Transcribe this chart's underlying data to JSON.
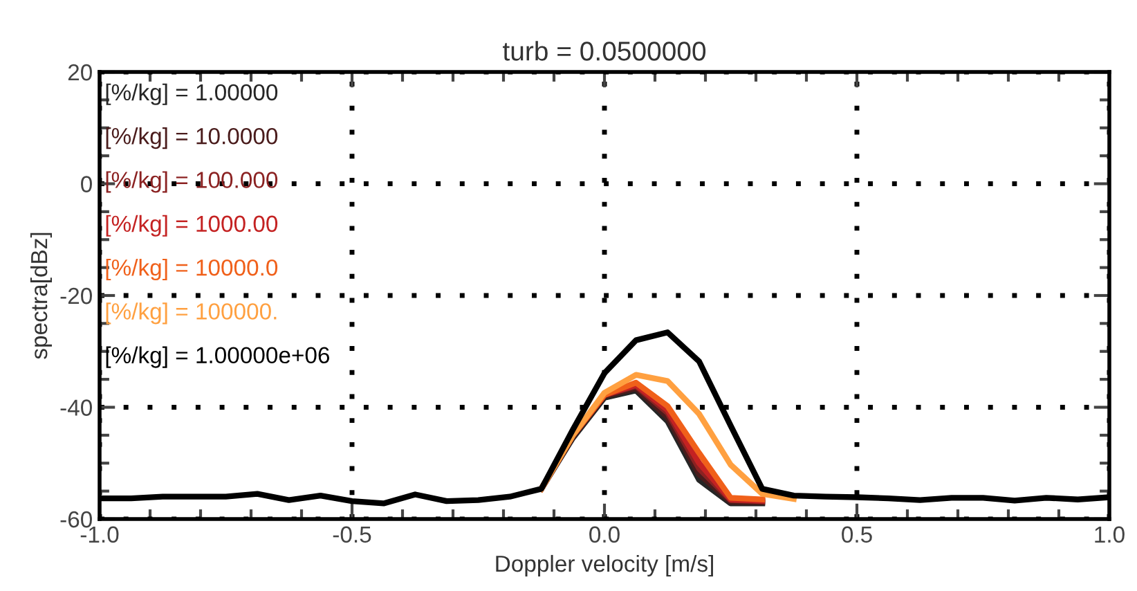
{
  "chart_data": {
    "type": "line",
    "title": "turb = 0.0500000",
    "xlabel": "Doppler velocity [m/s]",
    "ylabel": "spectra[dBz]",
    "x": [
      -1,
      -0.9375,
      -0.875,
      -0.8125,
      -0.75,
      -0.6875,
      -0.625,
      -0.5625,
      -0.5,
      -0.4375,
      -0.375,
      -0.3125,
      -0.25,
      -0.1875,
      -0.125,
      -0.0625,
      0,
      0.0625,
      0.125,
      0.1875,
      0.25,
      0.3125,
      0.375,
      0.4375,
      0.5,
      0.5625,
      0.625,
      0.6875,
      0.75,
      0.8125,
      0.875,
      0.9375,
      1
    ],
    "series": [
      {
        "name": "[%/kg] = 1.00000",
        "color": "#262626",
        "values": [
          null,
          null,
          null,
          null,
          null,
          null,
          null,
          null,
          null,
          null,
          null,
          null,
          null,
          null,
          -54.6,
          -45.5,
          -38.3,
          -37,
          -42.5,
          -53,
          -57.2,
          -57.2,
          null,
          null,
          null,
          null,
          null,
          null,
          null,
          null,
          null,
          null,
          null
        ]
      },
      {
        "name": "[%/kg] = 10.0000",
        "color": "#4a1c1c",
        "values": [
          null,
          null,
          null,
          null,
          null,
          null,
          null,
          null,
          null,
          null,
          null,
          null,
          null,
          null,
          -54.6,
          -45.2,
          -38,
          -36.6,
          -41.8,
          -52,
          -56.9,
          -57,
          null,
          null,
          null,
          null,
          null,
          null,
          null,
          null,
          null,
          null,
          null
        ]
      },
      {
        "name": "[%/kg] = 100.000",
        "color": "#8b2222",
        "values": [
          null,
          null,
          null,
          null,
          null,
          null,
          null,
          null,
          null,
          null,
          null,
          null,
          null,
          null,
          -54.6,
          -45,
          -37.8,
          -36.2,
          -41,
          -51,
          -56.6,
          -56.8,
          null,
          null,
          null,
          null,
          null,
          null,
          null,
          null,
          null,
          null,
          null
        ]
      },
      {
        "name": "[%/kg] = 1000.00",
        "color": "#c42222",
        "values": [
          null,
          null,
          null,
          null,
          null,
          null,
          null,
          null,
          null,
          null,
          null,
          null,
          null,
          null,
          -54.6,
          -45,
          -37.8,
          -36,
          -40.5,
          -50,
          -56.5,
          -56.7,
          null,
          null,
          null,
          null,
          null,
          null,
          null,
          null,
          null,
          null,
          null
        ]
      },
      {
        "name": "[%/kg] = 10000.0",
        "color": "#f0601a",
        "values": [
          null,
          null,
          null,
          null,
          null,
          null,
          null,
          null,
          null,
          null,
          null,
          null,
          null,
          null,
          -54.6,
          -45,
          -37.8,
          -35.6,
          -39.8,
          -48.2,
          -56.2,
          -56.5,
          null,
          null,
          null,
          null,
          null,
          null,
          null,
          null,
          null,
          null,
          null
        ]
      },
      {
        "name": "[%/kg] = 100000.",
        "color": "#ffa040",
        "values": [
          null,
          null,
          null,
          null,
          null,
          null,
          null,
          null,
          null,
          null,
          null,
          null,
          null,
          null,
          -54.6,
          -45,
          -37.4,
          -34.2,
          -35.3,
          -41.2,
          -50.3,
          -55.5,
          -56.4,
          null,
          null,
          null,
          null,
          null,
          null,
          null,
          null,
          null,
          null
        ]
      },
      {
        "name": "[%/kg] = 1.00000e+06",
        "color": "#000000",
        "values": [
          -56.3,
          -56.3,
          -56,
          -56,
          -56,
          -55.5,
          -56.6,
          -55.8,
          -56.8,
          -57.2,
          -55.6,
          -56.8,
          -56.6,
          -56,
          -54.6,
          -44,
          -33.9,
          -28,
          -26.6,
          -31.8,
          -43.3,
          -54.6,
          -55.8,
          -56,
          -56.1,
          -56.3,
          -56.6,
          -56.2,
          -56.2,
          -56.7,
          -56.2,
          -56.5,
          -56.1
        ]
      }
    ],
    "xlim": [
      -1,
      1
    ],
    "xticks": [
      {
        "value": -1,
        "label": "-1.0"
      },
      {
        "value": -0.5,
        "label": "-0.5"
      },
      {
        "value": 0,
        "label": "0.0"
      },
      {
        "value": 0.5,
        "label": "0.5"
      },
      {
        "value": 1,
        "label": "1.0"
      }
    ],
    "ylim": [
      -60,
      20
    ],
    "yticks": [
      -60,
      -40,
      -20,
      0,
      20
    ],
    "grid": true,
    "legend": "top left",
    "line_style": "solid",
    "marker": "none"
  }
}
